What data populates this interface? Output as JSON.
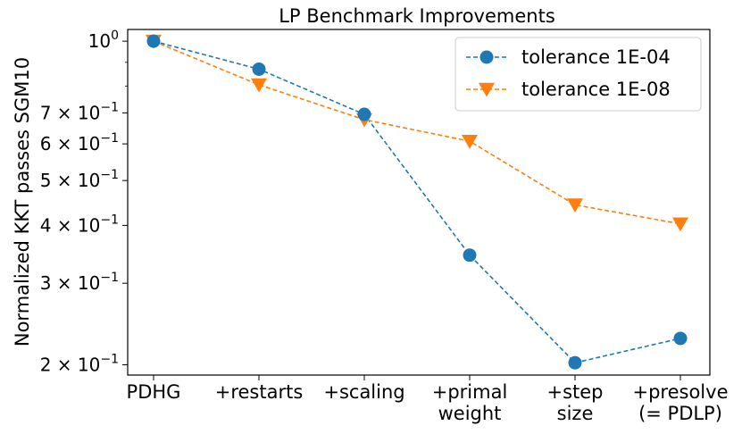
{
  "chart_data": {
    "type": "line",
    "title": "LP Benchmark Improvements",
    "xlabel": "",
    "ylabel": "Normalized KKT passes SGM10",
    "yscale": "log",
    "ylim": [
      0.19,
      1.06
    ],
    "categories": [
      [
        "PDHG"
      ],
      [
        "+restarts"
      ],
      [
        "+scaling"
      ],
      [
        "+primal",
        "weight"
      ],
      [
        "+step",
        "size"
      ],
      [
        "+presolve",
        "(= PDLP)"
      ]
    ],
    "yticks": [
      {
        "value": 1.0,
        "base": "10",
        "exp": "0",
        "coef": ""
      },
      {
        "value": 0.7,
        "base": "10",
        "exp": "−1",
        "coef": "7 × "
      },
      {
        "value": 0.6,
        "base": "10",
        "exp": "−1",
        "coef": "6 × "
      },
      {
        "value": 0.5,
        "base": "10",
        "exp": "−1",
        "coef": "5 × "
      },
      {
        "value": 0.4,
        "base": "10",
        "exp": "−1",
        "coef": "4 × "
      },
      {
        "value": 0.3,
        "base": "10",
        "exp": "−1",
        "coef": "3 × "
      },
      {
        "value": 0.2,
        "base": "10",
        "exp": "−1",
        "coef": "2 × "
      }
    ],
    "series": [
      {
        "name": "tolerance 1E-04",
        "color": "#1f77b4",
        "marker": "circle",
        "values": [
          1.0,
          0.87,
          0.695,
          0.345,
          0.202,
          0.228
        ]
      },
      {
        "name": "tolerance 1E-08",
        "color": "#ff7f0e",
        "marker": "triangle-down",
        "values": [
          1.0,
          0.805,
          0.677,
          0.608,
          0.443,
          0.403
        ]
      }
    ],
    "legend_position": "top-right",
    "grid": false
  }
}
